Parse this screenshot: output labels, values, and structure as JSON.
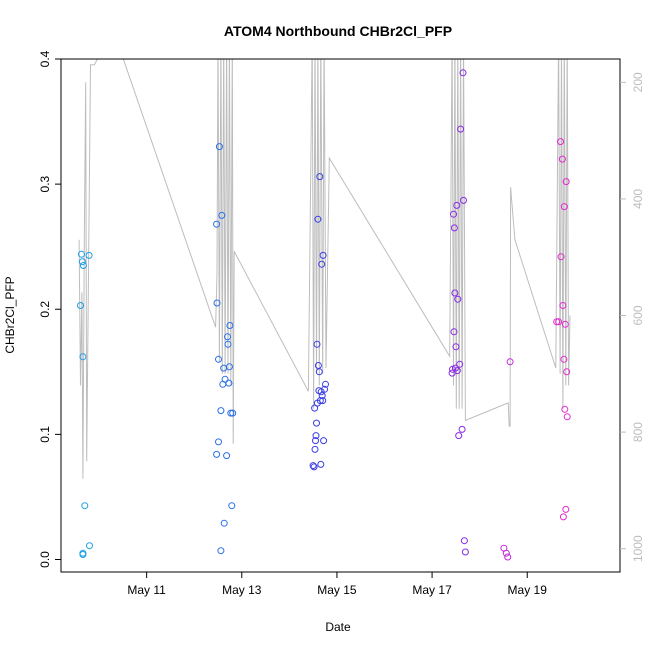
{
  "chart_data": {
    "type": "scatter",
    "title": "ATOM4 Northbound CHBr2Cl_PFP",
    "xlabel": "Date",
    "ylabel": "CHBr2Cl_PFP",
    "y2label": "",
    "xlim": [
      9.2,
      20.95
    ],
    "ylim": [
      -0.01,
      0.4
    ],
    "y2lim": [
      160,
      1040
    ],
    "y2_reversed": true,
    "x_ticks": [
      11,
      13,
      15,
      17,
      19
    ],
    "x_tick_labels": [
      "May 11",
      "May 13",
      "May 15",
      "May 17",
      "May 19"
    ],
    "y_ticks": [
      0.0,
      0.1,
      0.2,
      0.3,
      0.4
    ],
    "y_tick_labels": [
      "0.0",
      "0.1",
      "0.2",
      "0.3",
      "0.4"
    ],
    "y2_ticks": [
      200,
      400,
      600,
      800,
      1000
    ],
    "y2_tick_labels": [
      "200",
      "400",
      "600",
      "800",
      "1000"
    ],
    "grid": false,
    "colors": {
      "line": "#bdbdbd",
      "axis": "#000000",
      "axis_right": "#bdbdbd"
    },
    "points": [
      {
        "x": 9.61,
        "y": 0.203,
        "color": "#1e9ee6"
      },
      {
        "x": 9.63,
        "y": 0.244,
        "color": "#1e9ee6"
      },
      {
        "x": 9.65,
        "y": 0.238,
        "color": "#1e9ee6"
      },
      {
        "x": 9.66,
        "y": 0.162,
        "color": "#1e9ee6"
      },
      {
        "x": 9.67,
        "y": 0.235,
        "color": "#1e9ee6"
      },
      {
        "x": 9.66,
        "y": 0.005,
        "color": "#1e9ee6"
      },
      {
        "x": 9.66,
        "y": 0.004,
        "color": "#1e9ee6"
      },
      {
        "x": 9.7,
        "y": 0.043,
        "color": "#1e9ee6"
      },
      {
        "x": 9.79,
        "y": 0.243,
        "color": "#1e9ee6"
      },
      {
        "x": 9.8,
        "y": 0.011,
        "color": "#1e9ee6"
      },
      {
        "x": 12.47,
        "y": 0.268,
        "color": "#2a70ea"
      },
      {
        "x": 12.48,
        "y": 0.205,
        "color": "#2a70ea"
      },
      {
        "x": 12.47,
        "y": 0.084,
        "color": "#2a70ea"
      },
      {
        "x": 12.51,
        "y": 0.16,
        "color": "#2a70ea"
      },
      {
        "x": 12.51,
        "y": 0.094,
        "color": "#2a70ea"
      },
      {
        "x": 12.53,
        "y": 0.33,
        "color": "#2a70ea"
      },
      {
        "x": 12.56,
        "y": 0.119,
        "color": "#2a70ea"
      },
      {
        "x": 12.56,
        "y": 0.007,
        "color": "#2a70ea"
      },
      {
        "x": 12.58,
        "y": 0.275,
        "color": "#2a70ea"
      },
      {
        "x": 12.6,
        "y": 0.14,
        "color": "#2a70ea"
      },
      {
        "x": 12.62,
        "y": 0.153,
        "color": "#2a70ea"
      },
      {
        "x": 12.63,
        "y": 0.029,
        "color": "#2a70ea"
      },
      {
        "x": 12.65,
        "y": 0.144,
        "color": "#2a70ea"
      },
      {
        "x": 12.68,
        "y": 0.083,
        "color": "#2a70ea"
      },
      {
        "x": 12.7,
        "y": 0.178,
        "color": "#2a70ea"
      },
      {
        "x": 12.71,
        "y": 0.172,
        "color": "#2a70ea"
      },
      {
        "x": 12.73,
        "y": 0.141,
        "color": "#2a70ea"
      },
      {
        "x": 12.74,
        "y": 0.154,
        "color": "#2a70ea"
      },
      {
        "x": 12.75,
        "y": 0.187,
        "color": "#2a70ea"
      },
      {
        "x": 12.77,
        "y": 0.117,
        "color": "#2a70ea"
      },
      {
        "x": 12.79,
        "y": 0.043,
        "color": "#2a70ea"
      },
      {
        "x": 12.81,
        "y": 0.117,
        "color": "#2a70ea"
      },
      {
        "x": 14.5,
        "y": 0.075,
        "color": "#3b3fe6"
      },
      {
        "x": 14.52,
        "y": 0.074,
        "color": "#3b3fe6"
      },
      {
        "x": 14.53,
        "y": 0.121,
        "color": "#3b3fe6"
      },
      {
        "x": 14.54,
        "y": 0.088,
        "color": "#3b3fe6"
      },
      {
        "x": 14.55,
        "y": 0.095,
        "color": "#3b3fe6"
      },
      {
        "x": 14.56,
        "y": 0.099,
        "color": "#3b3fe6"
      },
      {
        "x": 14.57,
        "y": 0.109,
        "color": "#3b3fe6"
      },
      {
        "x": 14.58,
        "y": 0.172,
        "color": "#3b3fe6"
      },
      {
        "x": 14.59,
        "y": 0.125,
        "color": "#3b3fe6"
      },
      {
        "x": 14.6,
        "y": 0.272,
        "color": "#3b3fe6"
      },
      {
        "x": 14.61,
        "y": 0.155,
        "color": "#3b3fe6"
      },
      {
        "x": 14.62,
        "y": 0.135,
        "color": "#3b3fe6"
      },
      {
        "x": 14.63,
        "y": 0.15,
        "color": "#3b3fe6"
      },
      {
        "x": 14.64,
        "y": 0.306,
        "color": "#3b3fe6"
      },
      {
        "x": 14.65,
        "y": 0.127,
        "color": "#3b3fe6"
      },
      {
        "x": 14.66,
        "y": 0.076,
        "color": "#3b3fe6"
      },
      {
        "x": 14.67,
        "y": 0.134,
        "color": "#3b3fe6"
      },
      {
        "x": 14.68,
        "y": 0.236,
        "color": "#3b3fe6"
      },
      {
        "x": 14.69,
        "y": 0.131,
        "color": "#3b3fe6"
      },
      {
        "x": 14.7,
        "y": 0.127,
        "color": "#3b3fe6"
      },
      {
        "x": 14.71,
        "y": 0.243,
        "color": "#3b3fe6"
      },
      {
        "x": 14.72,
        "y": 0.095,
        "color": "#3b3fe6"
      },
      {
        "x": 14.74,
        "y": 0.136,
        "color": "#3b3fe6"
      },
      {
        "x": 14.76,
        "y": 0.14,
        "color": "#3b3fe6"
      },
      {
        "x": 17.42,
        "y": 0.149,
        "color": "#8a2ae6"
      },
      {
        "x": 17.43,
        "y": 0.152,
        "color": "#8a2ae6"
      },
      {
        "x": 17.45,
        "y": 0.276,
        "color": "#8a2ae6"
      },
      {
        "x": 17.46,
        "y": 0.182,
        "color": "#8a2ae6"
      },
      {
        "x": 17.47,
        "y": 0.265,
        "color": "#8a2ae6"
      },
      {
        "x": 17.48,
        "y": 0.213,
        "color": "#8a2ae6"
      },
      {
        "x": 17.49,
        "y": 0.153,
        "color": "#8a2ae6"
      },
      {
        "x": 17.5,
        "y": 0.17,
        "color": "#8a2ae6"
      },
      {
        "x": 17.52,
        "y": 0.283,
        "color": "#8a2ae6"
      },
      {
        "x": 17.53,
        "y": 0.151,
        "color": "#8a2ae6"
      },
      {
        "x": 17.54,
        "y": 0.208,
        "color": "#8a2ae6"
      },
      {
        "x": 17.56,
        "y": 0.099,
        "color": "#8a2ae6"
      },
      {
        "x": 17.58,
        "y": 0.156,
        "color": "#8a2ae6"
      },
      {
        "x": 17.6,
        "y": 0.344,
        "color": "#8a2ae6"
      },
      {
        "x": 17.63,
        "y": 0.104,
        "color": "#8a2ae6"
      },
      {
        "x": 17.65,
        "y": 0.389,
        "color": "#8a2ae6"
      },
      {
        "x": 17.66,
        "y": 0.287,
        "color": "#8a2ae6"
      },
      {
        "x": 17.68,
        "y": 0.015,
        "color": "#8a2ae6"
      },
      {
        "x": 17.7,
        "y": 0.006,
        "color": "#8a2ae6"
      },
      {
        "x": 18.51,
        "y": 0.009,
        "color": "#c22ad8"
      },
      {
        "x": 18.56,
        "y": 0.005,
        "color": "#c22ad8"
      },
      {
        "x": 18.59,
        "y": 0.002,
        "color": "#c22ad8"
      },
      {
        "x": 18.64,
        "y": 0.158,
        "color": "#c22ad8"
      },
      {
        "x": 19.62,
        "y": 0.19,
        "color": "#e42ad0"
      },
      {
        "x": 19.66,
        "y": 0.19,
        "color": "#e42ad0"
      },
      {
        "x": 19.7,
        "y": 0.334,
        "color": "#e42ad0"
      },
      {
        "x": 19.71,
        "y": 0.242,
        "color": "#e42ad0"
      },
      {
        "x": 19.74,
        "y": 0.32,
        "color": "#e42ad0"
      },
      {
        "x": 19.75,
        "y": 0.203,
        "color": "#e42ad0"
      },
      {
        "x": 19.76,
        "y": 0.034,
        "color": "#e42ad0"
      },
      {
        "x": 19.77,
        "y": 0.16,
        "color": "#e42ad0"
      },
      {
        "x": 19.78,
        "y": 0.282,
        "color": "#e42ad0"
      },
      {
        "x": 19.79,
        "y": 0.12,
        "color": "#e42ad0"
      },
      {
        "x": 19.8,
        "y": 0.188,
        "color": "#e42ad0"
      },
      {
        "x": 19.81,
        "y": 0.04,
        "color": "#e42ad0"
      },
      {
        "x": 19.82,
        "y": 0.302,
        "color": "#e42ad0"
      },
      {
        "x": 19.83,
        "y": 0.15,
        "color": "#e42ad0"
      },
      {
        "x": 19.84,
        "y": 0.114,
        "color": "#e42ad0"
      }
    ],
    "pressure_line": [
      [
        9.58,
        470
      ],
      [
        9.61,
        720
      ],
      [
        9.64,
        560
      ],
      [
        9.66,
        880
      ],
      [
        9.69,
        470
      ],
      [
        9.72,
        200
      ],
      [
        9.74,
        850
      ],
      [
        9.82,
        170
      ],
      [
        9.9,
        170
      ],
      [
        10.3,
        110
      ],
      [
        12.45,
        620
      ],
      [
        12.48,
        530
      ],
      [
        12.5,
        120
      ],
      [
        12.53,
        680
      ],
      [
        12.56,
        120
      ],
      [
        12.59,
        700
      ],
      [
        12.62,
        120
      ],
      [
        12.65,
        700
      ],
      [
        12.68,
        120
      ],
      [
        12.71,
        700
      ],
      [
        12.74,
        120
      ],
      [
        12.77,
        720
      ],
      [
        12.8,
        120
      ],
      [
        12.82,
        820
      ],
      [
        12.84,
        490
      ],
      [
        14.4,
        730
      ],
      [
        14.48,
        120
      ],
      [
        14.51,
        760
      ],
      [
        14.54,
        120
      ],
      [
        14.57,
        700
      ],
      [
        14.6,
        120
      ],
      [
        14.63,
        720
      ],
      [
        14.66,
        120
      ],
      [
        14.7,
        700
      ],
      [
        14.73,
        120
      ],
      [
        14.77,
        690
      ],
      [
        14.84,
        330
      ],
      [
        17.37,
        670
      ],
      [
        17.42,
        120
      ],
      [
        17.45,
        720
      ],
      [
        17.48,
        120
      ],
      [
        17.51,
        760
      ],
      [
        17.54,
        120
      ],
      [
        17.57,
        760
      ],
      [
        17.6,
        120
      ],
      [
        17.63,
        760
      ],
      [
        17.66,
        120
      ],
      [
        17.7,
        780
      ],
      [
        18.6,
        750
      ],
      [
        18.62,
        790
      ],
      [
        18.64,
        790
      ],
      [
        18.65,
        380
      ],
      [
        18.74,
        470
      ],
      [
        19.6,
        690
      ],
      [
        19.66,
        120
      ],
      [
        19.69,
        700
      ],
      [
        19.72,
        120
      ],
      [
        19.75,
        760
      ],
      [
        19.78,
        120
      ],
      [
        19.81,
        720
      ],
      [
        19.84,
        120
      ],
      [
        19.87,
        720
      ],
      [
        19.9,
        600
      ]
    ]
  }
}
